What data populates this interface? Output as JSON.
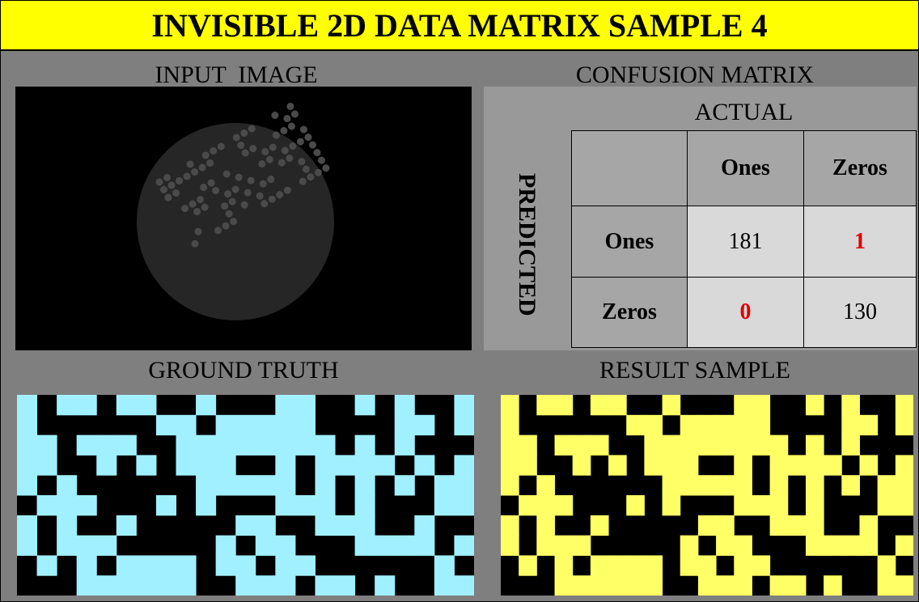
{
  "title": "INVISIBLE 2D DATA MATRIX SAMPLE 4",
  "panels": {
    "input_image": "INPUT  IMAGE",
    "confusion_matrix": "CONFUSION MATRIX",
    "ground_truth": "GROUND TRUTH",
    "result_sample": "RESULT SAMPLE"
  },
  "confusion_matrix": {
    "actual_label": "ACTUAL",
    "predicted_label": "PREDICTED",
    "columns": [
      "Ones",
      "Zeros"
    ],
    "rows": [
      {
        "label": "Ones",
        "values": [
          181,
          1
        ]
      },
      {
        "label": "Zeros",
        "values": [
          0,
          130
        ]
      }
    ]
  }
}
